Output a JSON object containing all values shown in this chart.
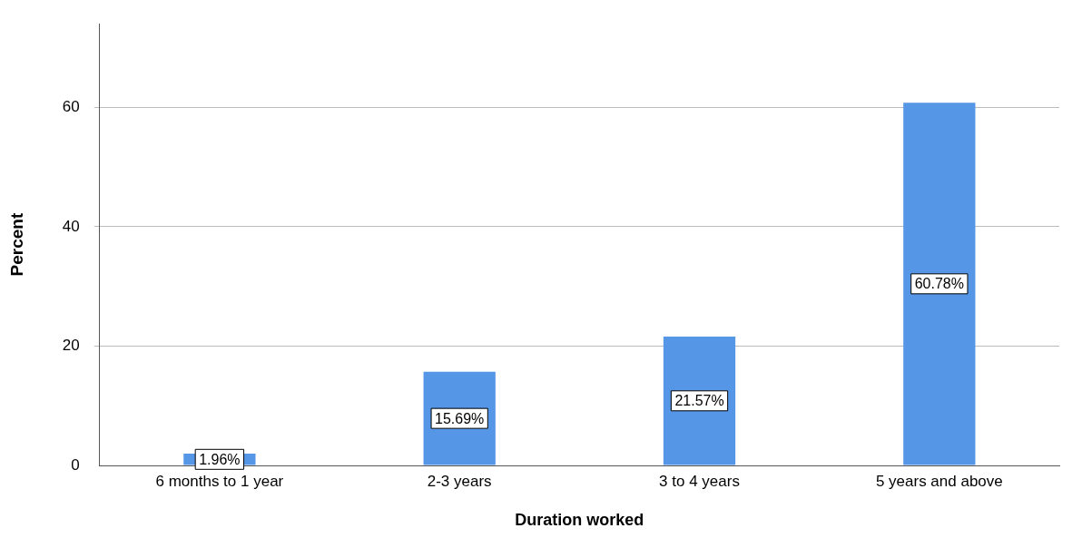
{
  "chart_data": {
    "type": "bar",
    "xlabel": "Duration worked",
    "ylabel": "Percent",
    "categories": [
      "6 months to 1 year",
      "2-3 years",
      "3 to 4 years",
      "5 years and above"
    ],
    "values": [
      1.96,
      15.69,
      21.57,
      60.78
    ],
    "color": "#5596e6",
    "value_labels": [
      "1.96%",
      "15.69%",
      "21.57%",
      "60.78%"
    ],
    "ylim": [
      0,
      74
    ],
    "yticks": [
      0,
      20,
      40,
      60
    ],
    "grid": "y",
    "legend": false
  }
}
